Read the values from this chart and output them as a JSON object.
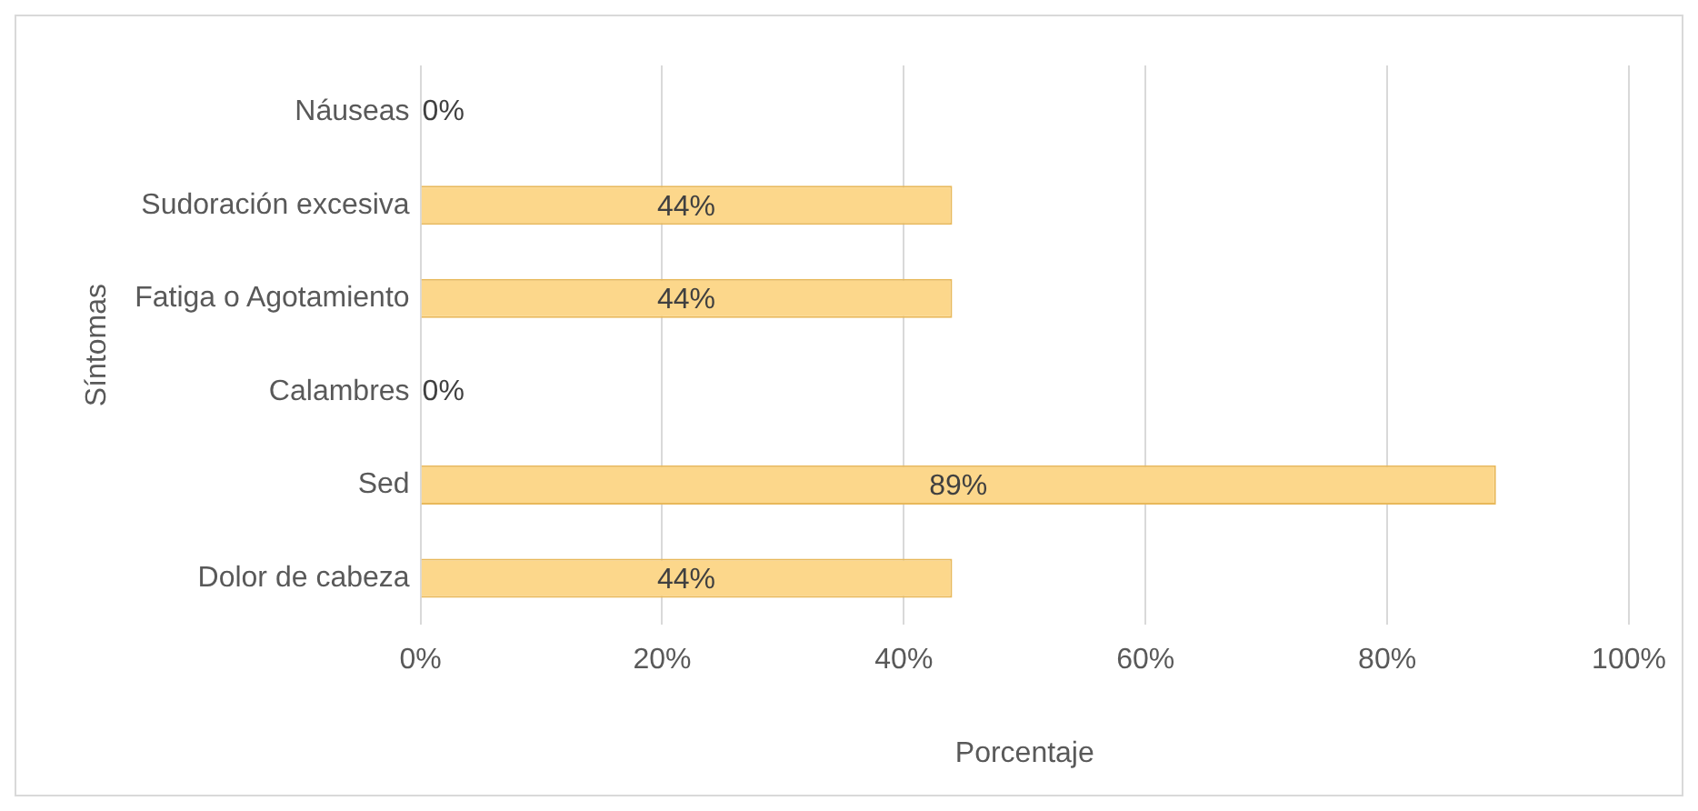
{
  "chart_data": {
    "type": "bar",
    "orientation": "horizontal",
    "xlabel": "Porcentaje",
    "ylabel": "Síntomas",
    "categories": [
      "Náuseas",
      "Sudoración excesiva",
      "Fatiga o Agotamiento",
      "Calambres",
      "Sed",
      "Dolor de cabeza"
    ],
    "values": [
      0,
      44,
      44,
      0,
      89,
      44
    ],
    "value_labels": [
      "0%",
      "44%",
      "44%",
      "0%",
      "89%",
      "44%"
    ],
    "color": "#fcd78b",
    "xlim": [
      0,
      100
    ],
    "xticks": [
      {
        "value": 0,
        "label": "0%"
      },
      {
        "value": 20,
        "label": "20%"
      },
      {
        "value": 40,
        "label": "40%"
      },
      {
        "value": 60,
        "label": "60%"
      },
      {
        "value": 80,
        "label": "80%"
      },
      {
        "value": 100,
        "label": "100%"
      }
    ],
    "grid": "x",
    "legend": false
  }
}
